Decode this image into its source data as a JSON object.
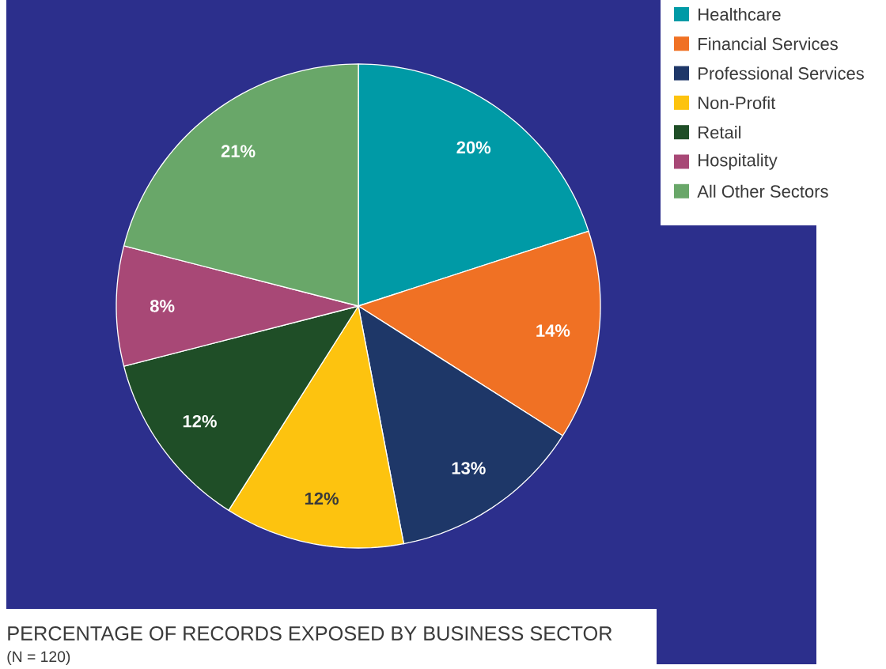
{
  "chart_data": {
    "type": "pie",
    "title": "PERCENTAGE OF RECORDS EXPOSED BY BUSINESS SECTOR",
    "subtitle": "(N = 120)",
    "categories": [
      "Healthcare",
      "Financial Services",
      "Professional Services",
      "Non-Profit",
      "Retail",
      "Hospitality",
      "All Other Sectors"
    ],
    "values": [
      20,
      14,
      13,
      12,
      12,
      8,
      21
    ],
    "value_labels": [
      "20%",
      "14%",
      "13%",
      "12%",
      "12%",
      "8%",
      "21%"
    ],
    "colors": [
      "#009aa6",
      "#f07124",
      "#1e3768",
      "#fdc30f",
      "#1f4e27",
      "#a84876",
      "#69a769"
    ],
    "legend": "top right"
  }
}
